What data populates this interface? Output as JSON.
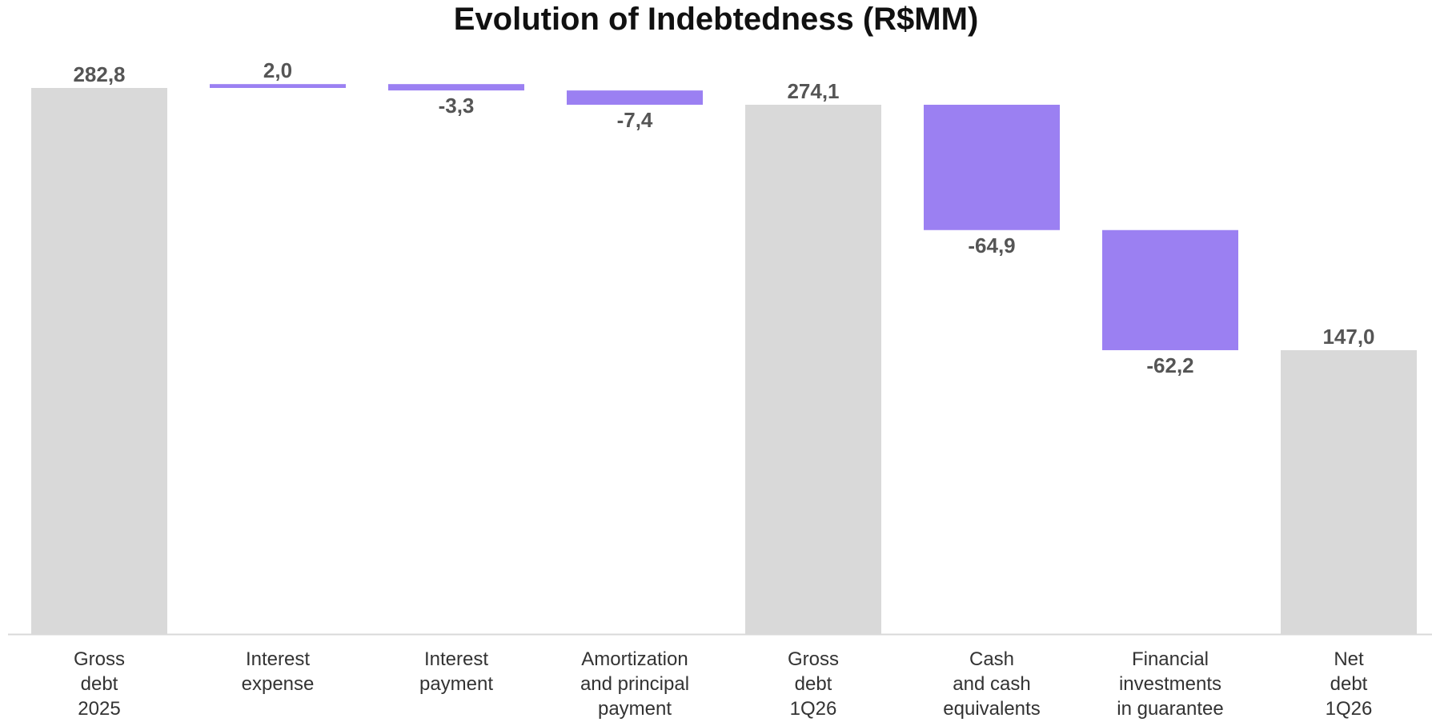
{
  "chart_data": {
    "type": "waterfall",
    "title": "Evolution of Indebtedness (R$MM)",
    "categories": [
      [
        "Gross",
        "debt",
        "2025"
      ],
      [
        "Interest",
        "expense"
      ],
      [
        "Interest",
        "payment"
      ],
      [
        "Amortization",
        "and principal",
        "payment"
      ],
      [
        "Gross",
        "debt",
        "1Q26"
      ],
      [
        "Cash",
        "and cash",
        "equivalents"
      ],
      [
        "Financial",
        "investments",
        "in guarantee"
      ],
      [
        "Net",
        "debt",
        "1Q26"
      ]
    ],
    "bars": [
      {
        "kind": "total",
        "value": 282.8,
        "label": "282,8"
      },
      {
        "kind": "delta",
        "value": 2.0,
        "label": "2,0"
      },
      {
        "kind": "delta",
        "value": -3.3,
        "label": "-3,3"
      },
      {
        "kind": "delta",
        "value": -7.4,
        "label": "-7,4"
      },
      {
        "kind": "total",
        "value": 274.1,
        "label": "274,1"
      },
      {
        "kind": "delta",
        "value": -64.9,
        "label": "-64,9"
      },
      {
        "kind": "delta",
        "value": -62.2,
        "label": "-62,2"
      },
      {
        "kind": "total",
        "value": 147.0,
        "label": "147,0"
      }
    ],
    "colors": {
      "total": "#d9d9d9",
      "delta": "#9b80f2",
      "axis": "#d9d9d9"
    },
    "ylim": [
      0,
      282.8
    ],
    "grid": false,
    "legend": "none"
  }
}
